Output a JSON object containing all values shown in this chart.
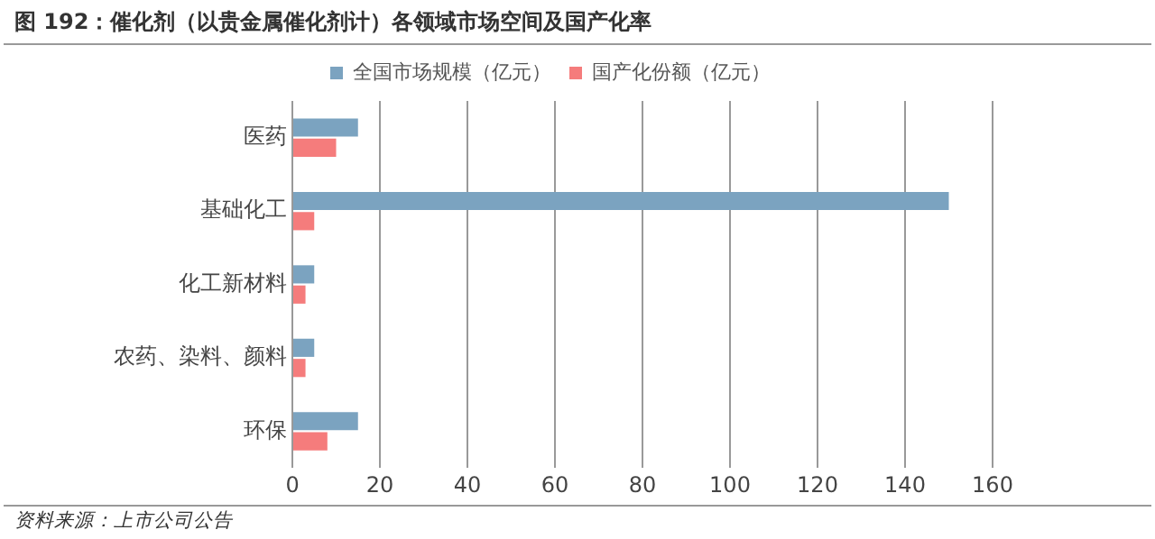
{
  "chart_data": {
    "type": "bar",
    "orientation": "horizontal",
    "title": "图 192：催化剂（以贵金属催化剂计）各领域市场空间及国产化率",
    "categories": [
      "医药",
      "基础化工",
      "化工新材料",
      "农药、染料、颜料",
      "环保"
    ],
    "series": [
      {
        "name": "全国市场规模（亿元）",
        "color": "#7ba3c0",
        "values": [
          15,
          150,
          5,
          5,
          15
        ]
      },
      {
        "name": "国产化份额（亿元）",
        "color": "#f57c7c",
        "values": [
          10,
          5,
          3,
          3,
          8
        ]
      }
    ],
    "xlim": [
      0,
      160
    ],
    "xticks": [
      0,
      20,
      40,
      60,
      80,
      100,
      120,
      140,
      160
    ],
    "grid": "x",
    "legend": "top",
    "annotations": [
      "资料来源：上市公司公告"
    ]
  }
}
